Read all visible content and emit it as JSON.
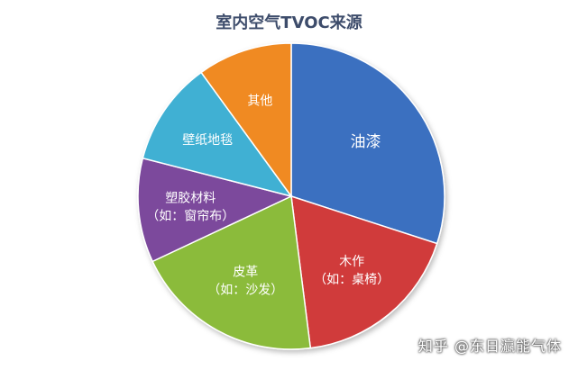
{
  "chart_data": {
    "type": "pie",
    "title": "室内空气TVOC来源",
    "slices": [
      {
        "name": "油漆",
        "sub": "",
        "value": 30,
        "color": "#3a6fc0"
      },
      {
        "name": "木作",
        "sub": "（如：桌椅）",
        "value": 18,
        "color": "#d03a3a"
      },
      {
        "name": "皮革",
        "sub": "（如：沙发）",
        "value": 20,
        "color": "#8bbb3a"
      },
      {
        "name": "塑胶材料",
        "sub": "（如：窗帘布）",
        "value": 11,
        "color": "#7b4a9c"
      },
      {
        "name": "壁纸地毯",
        "sub": "",
        "value": 11,
        "color": "#3fb0d3"
      },
      {
        "name": "其他",
        "sub": "",
        "value": 10,
        "color": "#f08a24"
      }
    ]
  },
  "watermark": "知乎 @东日瀛能气体"
}
